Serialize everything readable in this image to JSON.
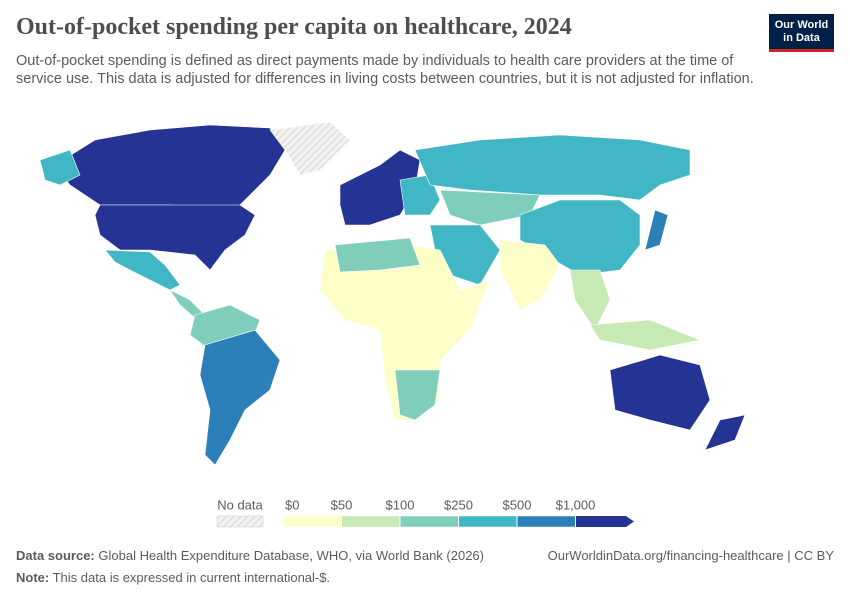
{
  "header": {
    "title": "Out-of-pocket spending per capita on healthcare, 2024",
    "subtitle": "Out-of-pocket spending is defined as direct payments made by individuals to health care providers at the time of service use. This data is adjusted for differences in living costs between countries, but it is not adjusted for inflation.",
    "logo": [
      "Our World",
      "in Data"
    ]
  },
  "legend": {
    "no_data": "No data",
    "ticks": [
      {
        "value": 0,
        "label": "$0"
      },
      {
        "value": 50,
        "label": "$50"
      },
      {
        "value": 100,
        "label": "$100"
      },
      {
        "value": 250,
        "label": "$250"
      },
      {
        "value": 500,
        "label": "$500"
      },
      {
        "value": 1000,
        "label": "$1,000"
      }
    ],
    "colors": [
      "#fdfdc8",
      "#c7e9b4",
      "#7fcdbb",
      "#41b6c4",
      "#2c7fb8",
      "#253494"
    ]
  },
  "footer": {
    "source_label": "Data source:",
    "source": "Global Health Expenditure Database, WHO, via World Bank (2026)",
    "url": "OurWorldinData.org/financing-healthcare | CC BY",
    "note_label": "Note:",
    "note": "This data is expressed in current international-$."
  }
}
